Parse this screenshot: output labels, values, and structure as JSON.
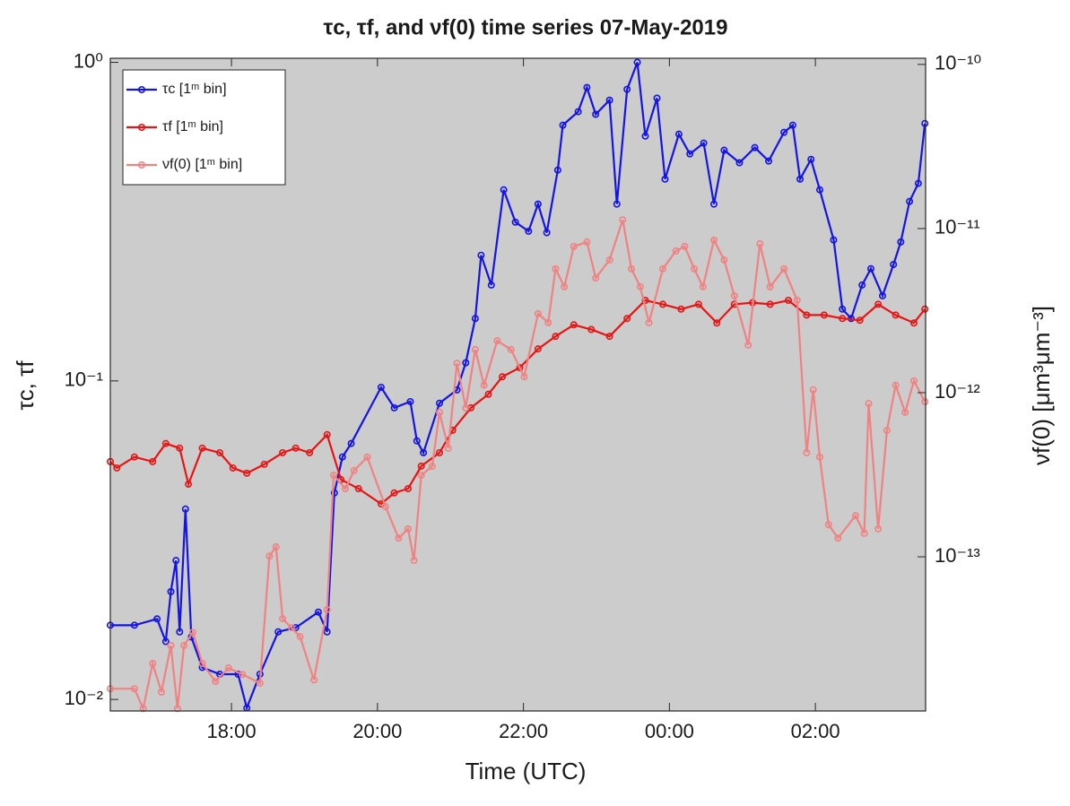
{
  "chart_data": {
    "type": "line",
    "title": "τc, τf, and νf(0) time series 07-May-2019",
    "x_label": "Time (UTC)",
    "y_label": "τc, τf",
    "y2_label": "νf(0) [μm³μm⁻³]",
    "xlim": [
      16.34,
      27.51
    ],
    "xticks": [
      {
        "value": 18,
        "label": "18:00"
      },
      {
        "value": 20,
        "label": "20:00"
      },
      {
        "value": 22,
        "label": "22:00"
      },
      {
        "value": 24,
        "label": "00:00"
      },
      {
        "value": 26,
        "label": "02:00"
      }
    ],
    "ylim": [
      0.0092,
      1.03
    ],
    "yscale": "log",
    "yticks": [
      {
        "value": 0.01,
        "label": "10⁻²"
      },
      {
        "value": 0.1,
        "label": "10⁻¹"
      },
      {
        "value": 1,
        "label": "10⁰"
      }
    ],
    "y2lim": [
      1.15e-14,
      1.09e-10
    ],
    "y2scale": "log",
    "y2ticks": [
      {
        "value": 1e-13,
        "label": "10⁻¹³"
      },
      {
        "value": 1e-12,
        "label": "10⁻¹²"
      },
      {
        "value": 1e-11,
        "label": "10⁻¹¹"
      },
      {
        "value": 1e-10,
        "label": "10⁻¹⁰"
      }
    ],
    "grid": false,
    "legend": "northwest",
    "background": "#cccccc",
    "series": [
      {
        "name": "τc [1ᵐ bin]",
        "color": "#1414e6",
        "axis": "y",
        "x": [
          16.34,
          16.67,
          16.98,
          17.1,
          17.17,
          17.24,
          17.29,
          17.37,
          17.45,
          17.6,
          17.84,
          18.09,
          18.21,
          18.39,
          18.64,
          18.88,
          19.19,
          19.31,
          19.41,
          19.52,
          19.64,
          20.05,
          20.23,
          20.45,
          20.54,
          20.63,
          20.85,
          21.09,
          21.21,
          21.34,
          21.42,
          21.56,
          21.73,
          21.89,
          22.07,
          22.2,
          22.32,
          22.47,
          22.54,
          22.75,
          22.87,
          22.99,
          23.18,
          23.28,
          23.42,
          23.56,
          23.67,
          23.83,
          23.94,
          24.13,
          24.28,
          24.47,
          24.61,
          24.75,
          24.96,
          25.17,
          25.36,
          25.57,
          25.69,
          25.79,
          25.94,
          26.06,
          26.25,
          26.37,
          26.49,
          26.64,
          26.76,
          26.92,
          27.07,
          27.17,
          27.29,
          27.41,
          27.5
        ],
        "values": [
          0.0171,
          0.0171,
          0.0179,
          0.0152,
          0.0218,
          0.0273,
          0.0163,
          0.0396,
          0.0157,
          0.0126,
          0.012,
          0.012,
          0.0094,
          0.012,
          0.0163,
          0.0168,
          0.0188,
          0.0163,
          0.0445,
          0.0577,
          0.0636,
          0.0955,
          0.0823,
          0.0861,
          0.0648,
          0.0595,
          0.0851,
          0.0937,
          0.114,
          0.157,
          0.248,
          0.2,
          0.398,
          0.315,
          0.295,
          0.359,
          0.292,
          0.459,
          0.635,
          0.7,
          0.834,
          0.687,
          0.761,
          0.359,
          0.823,
          1.0,
          0.587,
          0.772,
          0.43,
          0.595,
          0.516,
          0.558,
          0.359,
          0.53,
          0.484,
          0.54,
          0.49,
          0.603,
          0.635,
          0.43,
          0.496,
          0.398,
          0.277,
          0.168,
          0.157,
          0.2,
          0.225,
          0.185,
          0.232,
          0.273,
          0.366,
          0.417,
          0.643
        ]
      },
      {
        "name": "τf [1ᵐ bin]",
        "color": "#e81414",
        "axis": "y",
        "x": [
          16.34,
          16.43,
          16.67,
          16.92,
          17.1,
          17.29,
          17.41,
          17.6,
          17.84,
          18.02,
          18.21,
          18.45,
          18.7,
          18.88,
          19.07,
          19.31,
          19.5,
          19.74,
          20.05,
          20.23,
          20.42,
          20.6,
          20.85,
          21.03,
          21.28,
          21.52,
          21.71,
          21.95,
          22.2,
          22.44,
          22.69,
          22.93,
          23.18,
          23.42,
          23.67,
          23.91,
          24.16,
          24.4,
          24.65,
          24.89,
          25.14,
          25.38,
          25.63,
          25.88,
          26.12,
          26.37,
          26.61,
          26.86,
          27.1,
          27.35,
          27.5
        ],
        "values": [
          0.0558,
          0.0533,
          0.0577,
          0.0558,
          0.0636,
          0.0615,
          0.0474,
          0.0615,
          0.0595,
          0.0533,
          0.0513,
          0.0547,
          0.0595,
          0.0615,
          0.0595,
          0.0678,
          0.049,
          0.0459,
          0.0411,
          0.0445,
          0.0459,
          0.054,
          0.0595,
          0.07,
          0.0823,
          0.0908,
          0.103,
          0.11,
          0.126,
          0.138,
          0.15,
          0.145,
          0.138,
          0.157,
          0.179,
          0.174,
          0.168,
          0.174,
          0.152,
          0.174,
          0.176,
          0.174,
          0.179,
          0.161,
          0.161,
          0.157,
          0.155,
          0.174,
          0.161,
          0.152,
          0.168
        ]
      },
      {
        "name": "νf(0) [1ᵐ bin]",
        "color": "#f08282",
        "axis": "y2",
        "x": [
          16.34,
          16.67,
          16.79,
          16.92,
          17.04,
          17.17,
          17.26,
          17.35,
          17.47,
          17.6,
          17.78,
          17.96,
          18.15,
          18.39,
          18.52,
          18.61,
          18.7,
          18.82,
          18.94,
          19.13,
          19.31,
          19.4,
          19.56,
          19.68,
          19.86,
          20.11,
          20.29,
          20.42,
          20.5,
          20.6,
          20.75,
          20.85,
          20.97,
          21.09,
          21.21,
          21.34,
          21.46,
          21.64,
          21.83,
          22.01,
          22.2,
          22.34,
          22.44,
          22.56,
          22.69,
          22.87,
          22.99,
          23.18,
          23.36,
          23.48,
          23.6,
          23.72,
          23.91,
          24.09,
          24.21,
          24.34,
          24.46,
          24.61,
          24.75,
          24.89,
          25.08,
          25.24,
          25.38,
          25.57,
          25.75,
          25.88,
          25.97,
          26.06,
          26.18,
          26.31,
          26.55,
          26.67,
          26.73,
          26.86,
          26.98,
          27.1,
          27.23,
          27.35,
          27.5
        ],
        "values": [
          1.57e-14,
          1.57e-14,
          1.19e-14,
          2.24e-14,
          1.5e-14,
          2.88e-14,
          1.19e-14,
          2.88e-14,
          3.47e-14,
          2.24e-14,
          1.74e-14,
          2.1e-14,
          1.92e-14,
          1.7e-14,
          1.01e-13,
          1.15e-13,
          4.2e-14,
          3.7e-14,
          3.26e-14,
          1.78e-14,
          4.77e-14,
          3.14e-13,
          2.6e-13,
          3.35e-13,
          4.05e-13,
          2.02e-13,
          1.3e-13,
          1.48e-13,
          9.51e-14,
          3.14e-13,
          3.56e-13,
          7.59e-13,
          4.59e-13,
          1.51e-12,
          8.07e-13,
          1.83e-12,
          1.11e-12,
          2.07e-12,
          1.83e-12,
          1.25e-12,
          3.03e-12,
          2.67e-12,
          5.68e-12,
          4.42e-12,
          7.78e-12,
          8.28e-12,
          5e-12,
          6.44e-12,
          1.13e-11,
          5.68e-12,
          4.42e-12,
          2.67e-12,
          5.68e-12,
          7.3e-12,
          7.78e-12,
          5.68e-12,
          4.42e-12,
          8.49e-12,
          6.44e-12,
          3.89e-12,
          1.95e-12,
          8.07e-12,
          4.42e-12,
          5.68e-12,
          3.66e-12,
          4.31e-13,
          1.04e-12,
          4.05e-13,
          1.57e-13,
          1.3e-13,
          1.78e-13,
          1.39e-13,
          8.59e-13,
          1.48e-13,
          5.89e-13,
          1.11e-12,
          7.59e-13,
          1.18e-12,
          8.81e-13
        ]
      }
    ]
  }
}
